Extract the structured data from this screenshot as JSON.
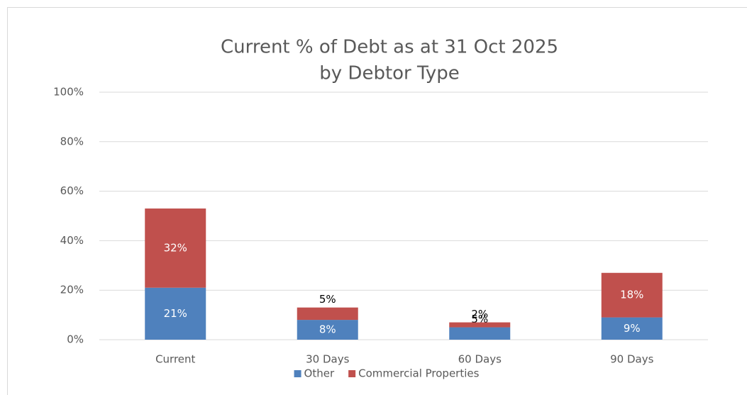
{
  "chart_data": {
    "type": "stacked_bar",
    "title": "Current % of Debt as at 31 Oct 2025",
    "subtitle": "by Debtor Type",
    "categories": [
      "Current",
      "30 Days",
      "60 Days",
      "90 Days"
    ],
    "series": [
      {
        "name": "Other",
        "color": "#4f81bd",
        "values": [
          21,
          8,
          5,
          9
        ],
        "value_labels": [
          "21%",
          "8%",
          "5%",
          "9%"
        ]
      },
      {
        "name": "Commercial Properties",
        "color": "#c0504d",
        "values": [
          32,
          5,
          2,
          18
        ],
        "value_labels": [
          "32%",
          "5%",
          "2%",
          "18%"
        ]
      }
    ],
    "ylim": [
      0,
      100
    ],
    "yticks": [
      {
        "value": 0,
        "label": "0%"
      },
      {
        "value": 20,
        "label": "20%"
      },
      {
        "value": 40,
        "label": "40%"
      },
      {
        "value": 60,
        "label": "60%"
      },
      {
        "value": 80,
        "label": "80%"
      },
      {
        "value": 100,
        "label": "100%"
      }
    ],
    "grid": true,
    "legend": "bottom"
  }
}
